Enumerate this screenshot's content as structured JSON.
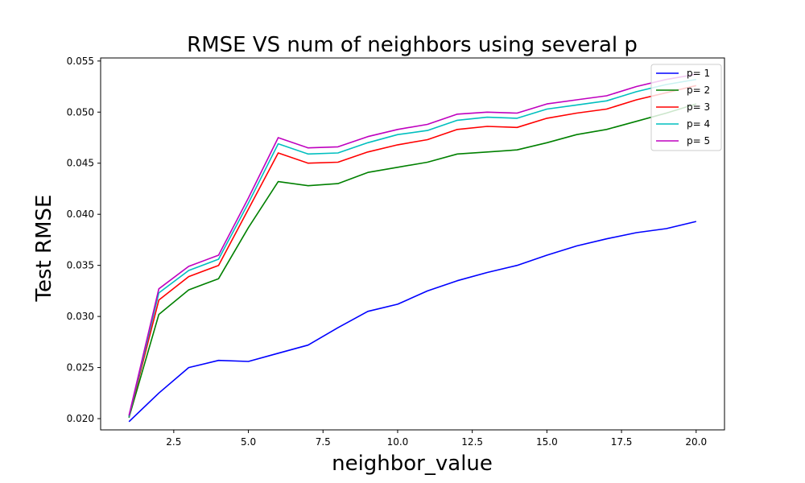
{
  "chart_data": {
    "type": "line",
    "title": "RMSE VS num of neighbors using several p",
    "xlabel": "neighbor_value",
    "ylabel": "Test RMSE",
    "xlim": [
      0.05,
      20.95
    ],
    "ylim": [
      0.0189,
      0.0553
    ],
    "xticks": [
      2.5,
      5.0,
      7.5,
      10.0,
      12.5,
      15.0,
      17.5,
      20.0
    ],
    "xtick_labels": [
      "2.5",
      "5.0",
      "7.5",
      "10.0",
      "12.5",
      "15.0",
      "17.5",
      "20.0"
    ],
    "yticks": [
      0.02,
      0.025,
      0.03,
      0.035,
      0.04,
      0.045,
      0.05,
      0.055
    ],
    "ytick_labels": [
      "0.020",
      "0.025",
      "0.030",
      "0.035",
      "0.040",
      "0.045",
      "0.050",
      "0.055"
    ],
    "grid": false,
    "legend_position": "top-right",
    "x": [
      1,
      2,
      3,
      4,
      5,
      6,
      7,
      8,
      9,
      10,
      11,
      12,
      13,
      14,
      15,
      16,
      17,
      18,
      19,
      20
    ],
    "series": [
      {
        "name": "p= 1",
        "color": "#0000ff",
        "values": [
          0.0197,
          0.0225,
          0.025,
          0.0257,
          0.0256,
          0.0264,
          0.0272,
          0.0289,
          0.0305,
          0.0312,
          0.0325,
          0.0335,
          0.0343,
          0.035,
          0.036,
          0.0369,
          0.0376,
          0.0382,
          0.0386,
          0.0393
        ]
      },
      {
        "name": "p= 2",
        "color": "#008000",
        "values": [
          0.0201,
          0.0302,
          0.0326,
          0.0337,
          0.0387,
          0.0432,
          0.0428,
          0.043,
          0.0441,
          0.0446,
          0.0451,
          0.0459,
          0.0461,
          0.0463,
          0.047,
          0.0478,
          0.0483,
          0.0491,
          0.0499,
          0.0508
        ]
      },
      {
        "name": "p= 3",
        "color": "#ff0000",
        "values": [
          0.0202,
          0.0316,
          0.0339,
          0.035,
          0.0405,
          0.046,
          0.045,
          0.0451,
          0.0461,
          0.0468,
          0.0473,
          0.0483,
          0.0486,
          0.0485,
          0.0494,
          0.0499,
          0.0503,
          0.0512,
          0.0519,
          0.0526
        ]
      },
      {
        "name": "p= 4",
        "color": "#00bfbf",
        "values": [
          0.0202,
          0.0323,
          0.0345,
          0.0356,
          0.0411,
          0.0469,
          0.0459,
          0.046,
          0.047,
          0.0478,
          0.0482,
          0.0492,
          0.0495,
          0.0494,
          0.0503,
          0.0507,
          0.0511,
          0.052,
          0.0527,
          0.0532
        ]
      },
      {
        "name": "p= 5",
        "color": "#bf00bf",
        "values": [
          0.0203,
          0.0327,
          0.0349,
          0.036,
          0.0416,
          0.0475,
          0.0465,
          0.0466,
          0.0476,
          0.0483,
          0.0488,
          0.0498,
          0.05,
          0.0499,
          0.0508,
          0.0512,
          0.0516,
          0.0525,
          0.0532,
          0.0537
        ]
      }
    ]
  }
}
